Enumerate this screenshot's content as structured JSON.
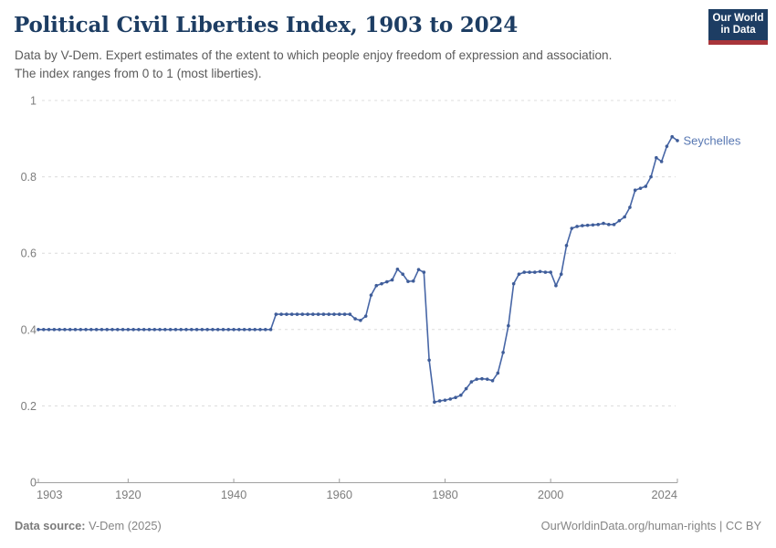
{
  "header": {
    "title": "Political Civil Liberties Index, 1903 to 2024",
    "subtitle_line1": "Data by V-Dem. Expert estimates of the extent to which people enjoy freedom of expression and association.",
    "subtitle_line2": "The index ranges from 0 to 1 (most liberties).",
    "logo": {
      "line1": "Our World",
      "line2": "in Data"
    }
  },
  "chart_data": {
    "type": "line",
    "title": "Political Civil Liberties Index, 1903 to 2024",
    "xlabel": "",
    "ylabel": "",
    "x_start": 1903,
    "x_end": 2024,
    "x_step": 1,
    "xlim": [
      1903,
      2024
    ],
    "ylim": [
      0,
      1
    ],
    "x_ticks": [
      1903,
      1920,
      1940,
      1960,
      1980,
      2000,
      2024
    ],
    "y_ticks": [
      0,
      0.2,
      0.4,
      0.6,
      0.8,
      1
    ],
    "grid": "horizontal-dashed",
    "legend_position": "end-of-line-label",
    "series": [
      {
        "name": "Seychelles",
        "values": [
          0.4,
          0.4,
          0.4,
          0.4,
          0.4,
          0.4,
          0.4,
          0.4,
          0.4,
          0.4,
          0.4,
          0.4,
          0.4,
          0.4,
          0.4,
          0.4,
          0.4,
          0.4,
          0.4,
          0.4,
          0.4,
          0.4,
          0.4,
          0.4,
          0.4,
          0.4,
          0.4,
          0.4,
          0.4,
          0.4,
          0.4,
          0.4,
          0.4,
          0.4,
          0.4,
          0.4,
          0.4,
          0.4,
          0.4,
          0.4,
          0.4,
          0.4,
          0.4,
          0.4,
          0.4,
          0.44,
          0.44,
          0.44,
          0.44,
          0.44,
          0.44,
          0.44,
          0.44,
          0.44,
          0.44,
          0.44,
          0.44,
          0.44,
          0.44,
          0.44,
          0.428,
          0.424,
          0.435,
          0.49,
          0.515,
          0.52,
          0.525,
          0.53,
          0.558,
          0.545,
          0.526,
          0.527,
          0.557,
          0.55,
          0.32,
          0.21,
          0.213,
          0.215,
          0.218,
          0.222,
          0.228,
          0.245,
          0.263,
          0.27,
          0.271,
          0.27,
          0.266,
          0.286,
          0.34,
          0.41,
          0.52,
          0.545,
          0.55,
          0.55,
          0.55,
          0.552,
          0.55,
          0.55,
          0.515,
          0.545,
          0.62,
          0.665,
          0.67,
          0.672,
          0.673,
          0.674,
          0.675,
          0.678,
          0.675,
          0.675,
          0.685,
          0.695,
          0.72,
          0.765,
          0.77,
          0.775,
          0.8,
          0.85,
          0.84,
          0.88,
          0.905,
          0.895
        ]
      }
    ]
  },
  "footer": {
    "source_label": "Data source:",
    "source_value": "V-Dem (2025)",
    "credit": "OurWorldinData.org/human-rights | CC BY"
  },
  "colors": {
    "line": "#4766a6",
    "point": "#3f5d99",
    "end_label": "#5878b3",
    "grid": "#dcdcdc",
    "axis": "#a0a0a0",
    "tick_text": "#7d7d7d",
    "title": "#1d3d63",
    "subtitle": "#5b5b5b",
    "footer": "#858585",
    "logo_bg": "#1d3d63",
    "logo_accent": "#a8353a"
  }
}
